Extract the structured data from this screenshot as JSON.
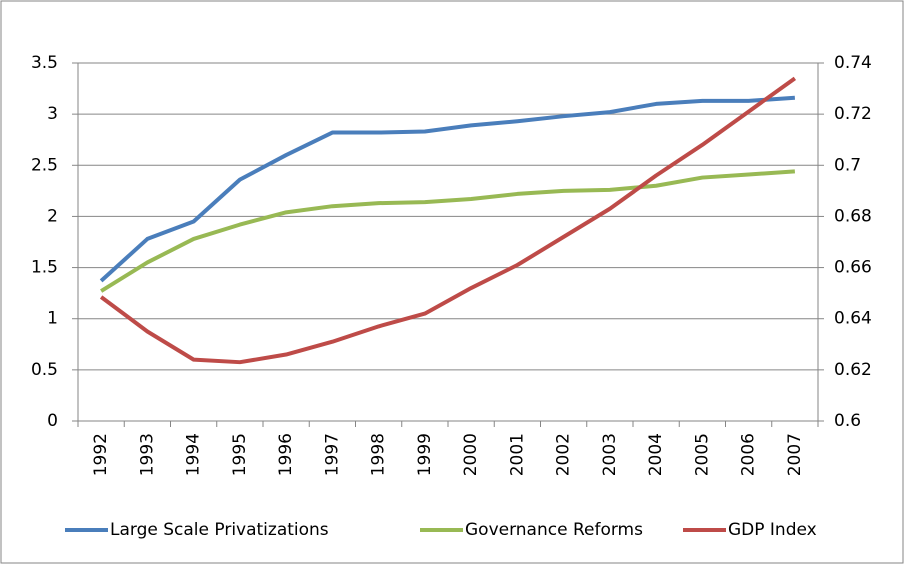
{
  "chart_data": {
    "type": "line",
    "categories": [
      "1992",
      "1993",
      "1994",
      "1995",
      "1996",
      "1997",
      "1998",
      "1999",
      "2000",
      "2001",
      "2002",
      "2003",
      "2004",
      "2005",
      "2006",
      "2007"
    ],
    "series": [
      {
        "name": "Large Scale Privatizations",
        "color": "#4a7ebb",
        "values": [
          1.37,
          1.78,
          1.95,
          2.36,
          2.6,
          2.82,
          2.82,
          2.83,
          2.89,
          2.93,
          2.98,
          3.02,
          3.1,
          3.13,
          3.13,
          3.16
        ]
      },
      {
        "name": "Governance Reforms",
        "color": "#98b954",
        "values": [
          1.27,
          1.55,
          1.78,
          1.92,
          2.04,
          2.1,
          2.13,
          2.14,
          2.17,
          2.22,
          2.25,
          2.26,
          2.3,
          2.38,
          2.41,
          2.44
        ]
      },
      {
        "name": "GDP Index",
        "color": "#be4b48",
        "axis": "y2",
        "values": [
          0.6485,
          0.635,
          0.624,
          0.623,
          0.626,
          0.631,
          0.637,
          0.642,
          0.652,
          0.661,
          0.672,
          0.683,
          0.696,
          0.708,
          0.721,
          0.734
        ]
      }
    ],
    "ylim": [
      0,
      3.5
    ],
    "yticks": [
      0,
      0.5,
      1,
      1.5,
      2,
      2.5,
      3,
      3.5
    ],
    "y2lim": [
      0.6,
      0.74
    ],
    "y2ticks": [
      0.6,
      0.62,
      0.64,
      0.66,
      0.68,
      0.7,
      0.72,
      0.74
    ],
    "grid": true,
    "legend": "bottom"
  }
}
